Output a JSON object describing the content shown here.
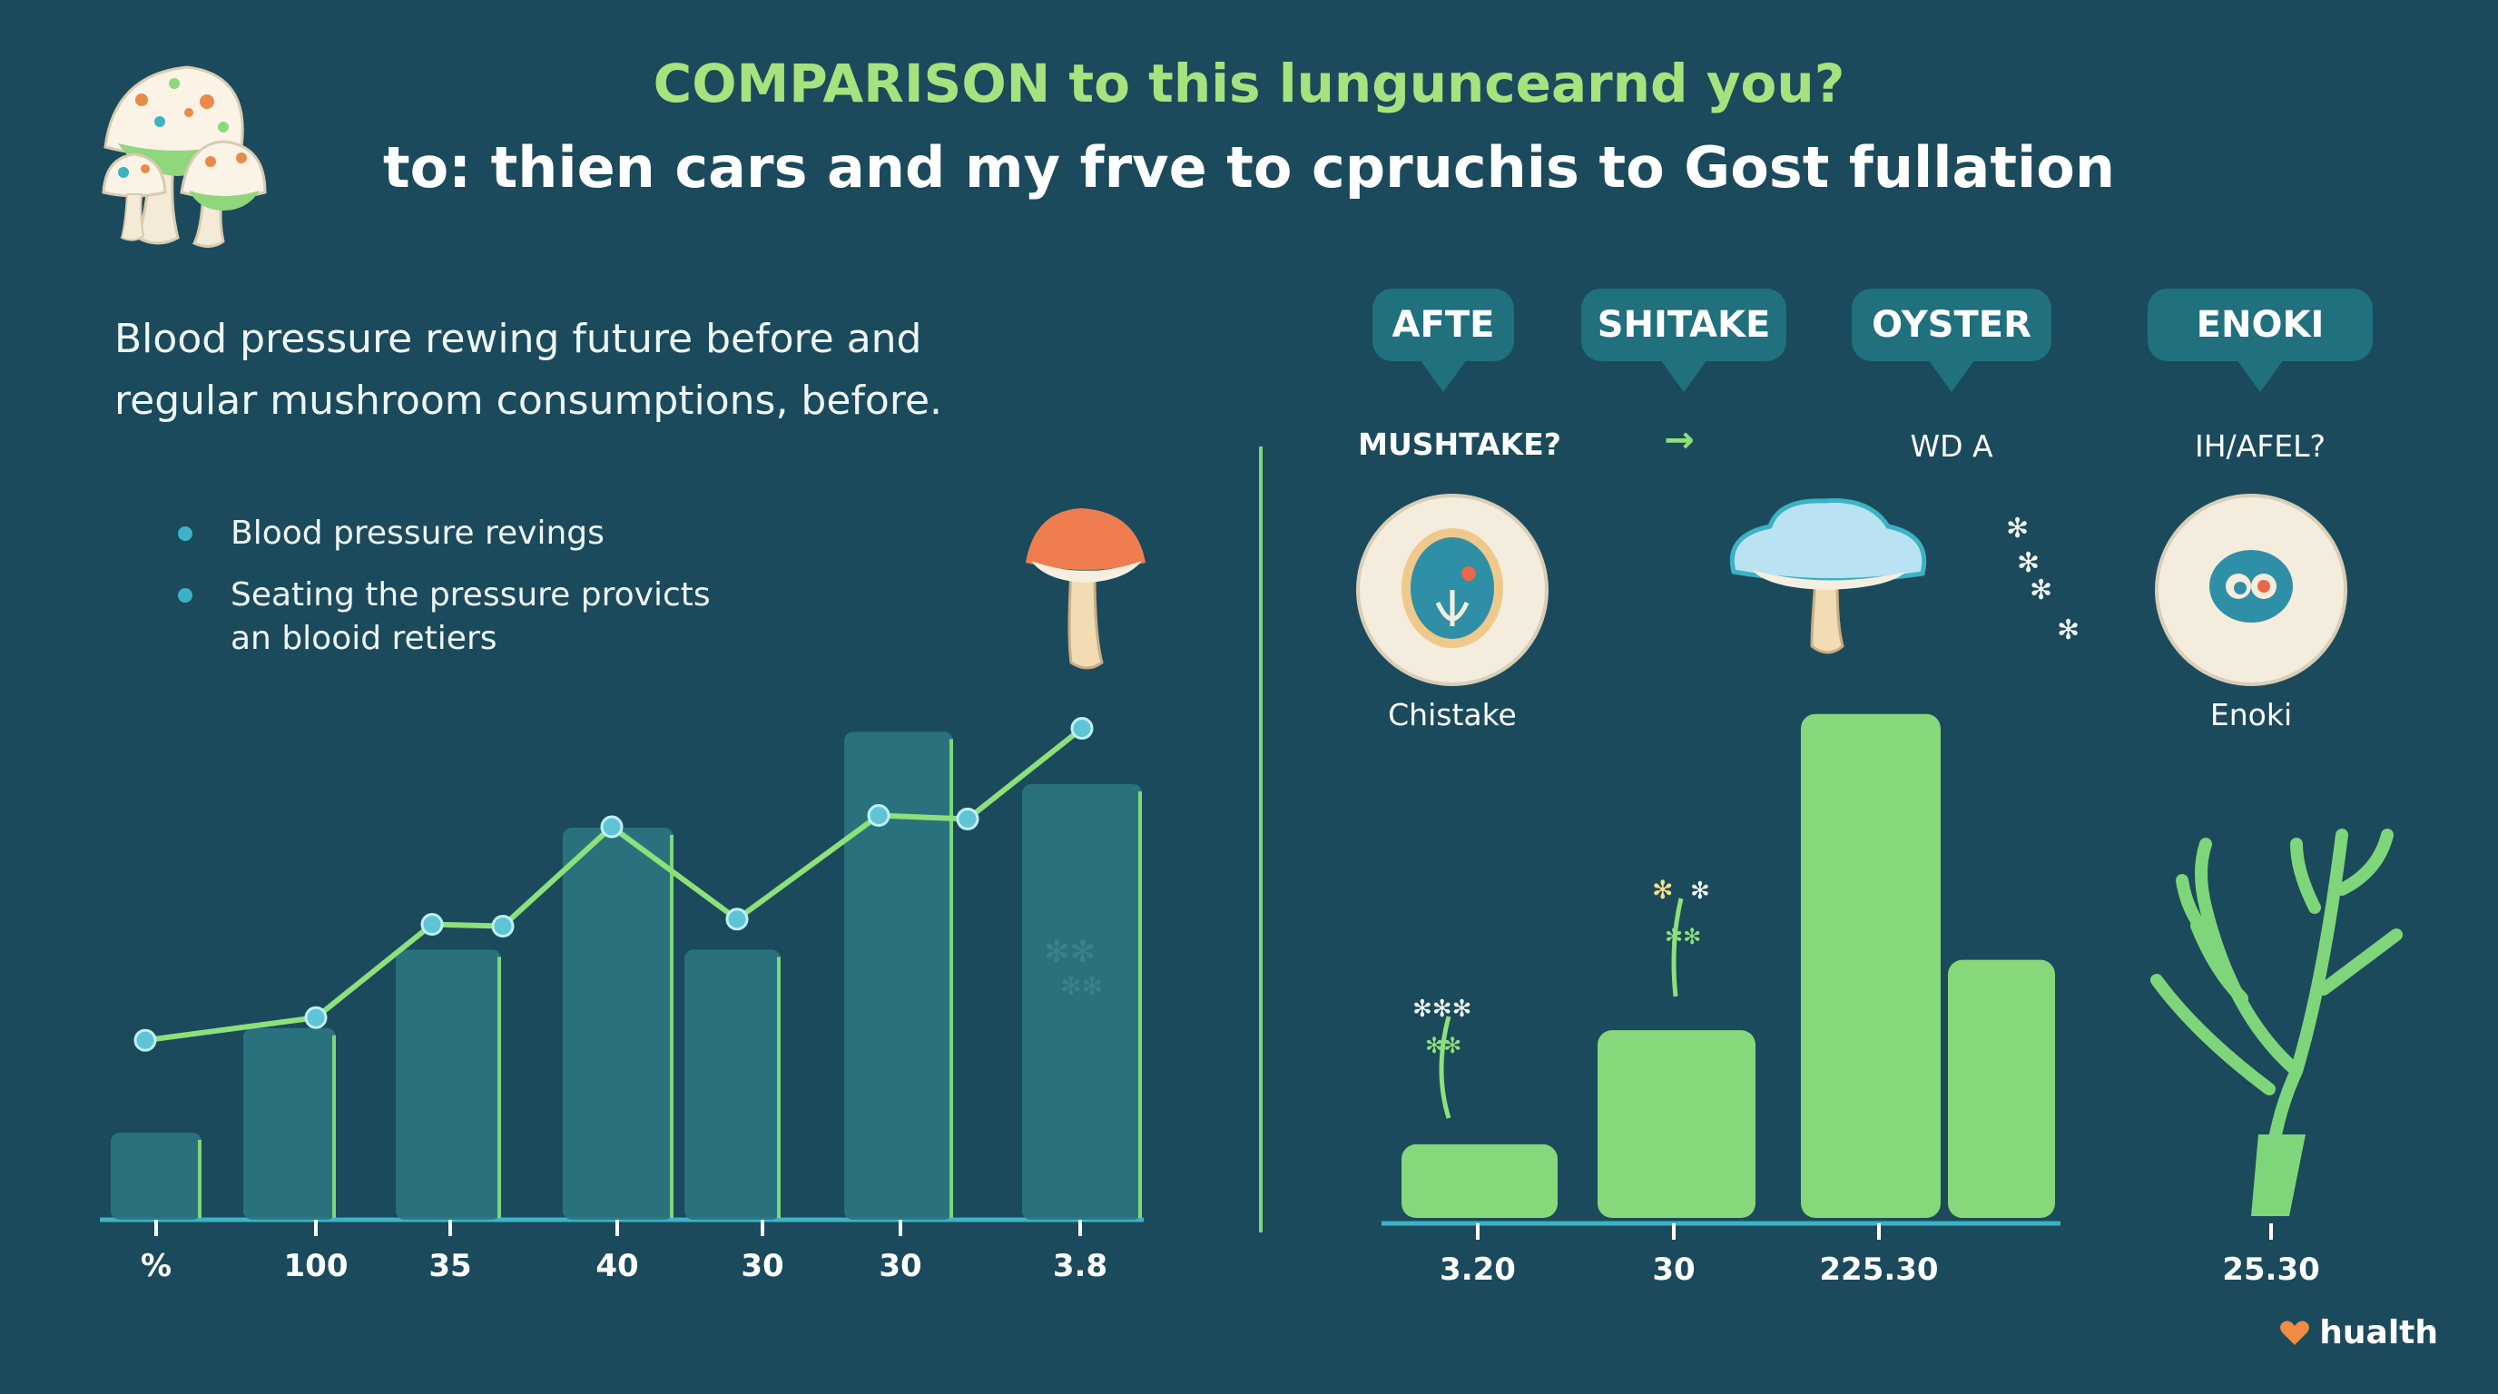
{
  "header": {
    "title": "COMPARISON to this lunguncearnd you?",
    "subtitle": "to: thien cars and my frve to cpruchis to Gost fullation"
  },
  "left_panel": {
    "intro_line1": "Blood pressure rewing future before and",
    "intro_line2": "regular  mushroom consumptions, before.",
    "bullets": [
      {
        "line1": "Blood pressure revings",
        "line2": ""
      },
      {
        "line1": "Seating the pressure provicts",
        "line2": "an blooid retiers"
      }
    ]
  },
  "right_panel": {
    "tags": [
      "AFTE",
      "SHITAKE",
      "OYSTER",
      "ENOKI"
    ],
    "sublabels": [
      "MUSHTAKE?",
      "→",
      "WD A",
      "IH/AFEL?"
    ],
    "captions": [
      "Chistake",
      "Enoki"
    ]
  },
  "footer": {
    "brand": "hualth",
    "icon": "heart-icon"
  },
  "colors": {
    "background": "#1b4a5c",
    "bar_left": "#2a7580",
    "bar_right": "#86d87a",
    "line": "#8ee07a",
    "marker": "#5fc4d6",
    "title_accent": "#a6e37e"
  },
  "chart_data": [
    {
      "type": "bar",
      "categories": [
        "%",
        "100",
        "35",
        "40",
        "30",
        "30",
        "3.8"
      ],
      "values": [
        10,
        22,
        31,
        45,
        31,
        56,
        50
      ],
      "ylim": [
        0,
        60
      ],
      "grid": false,
      "line_overlay": {
        "values": [
          20.6,
          23.2,
          33.9,
          33.7,
          45.1,
          34.5,
          46.4,
          46.0,
          56.4
        ]
      }
    },
    {
      "type": "bar",
      "categories": [
        "3.20",
        "30",
        "225.30",
        "",
        "25.30"
      ],
      "values": [
        9,
        22,
        58,
        30,
        null
      ],
      "ylim": [
        0,
        62
      ],
      "grid": false
    }
  ]
}
